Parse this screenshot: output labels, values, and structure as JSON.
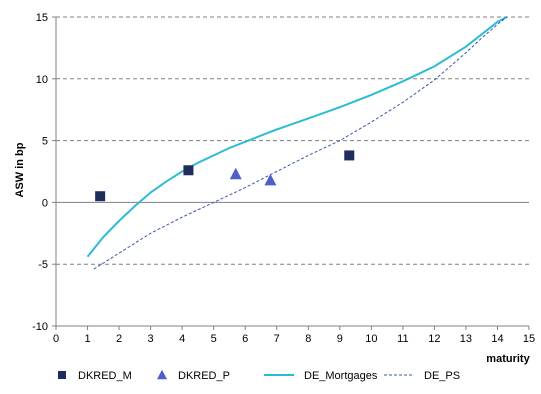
{
  "chart_data": {
    "type": "scatter",
    "title": "",
    "xlabel": "maturity",
    "ylabel": "ASW in bp",
    "xlim": [
      0,
      15
    ],
    "ylim": [
      -10,
      15
    ],
    "xticks": [
      0,
      1,
      2,
      3,
      4,
      5,
      6,
      7,
      8,
      9,
      10,
      11,
      12,
      13,
      14,
      15
    ],
    "yticks": [
      -10,
      -5,
      0,
      5,
      10,
      15
    ],
    "grid": "horizontal dashed",
    "legend_placement": "bottom",
    "series": [
      {
        "name": "DKRED_M",
        "kind": "marker",
        "marker": "square",
        "color": "#1f2d5c",
        "points": [
          [
            1.4,
            0.5
          ],
          [
            4.2,
            2.6
          ],
          [
            9.3,
            3.8
          ]
        ]
      },
      {
        "name": "DKRED_P",
        "kind": "marker",
        "marker": "triangle",
        "color": "#4f5fc9",
        "points": [
          [
            5.7,
            2.3
          ],
          [
            6.8,
            1.8
          ]
        ]
      },
      {
        "name": "DE_Mortgages",
        "kind": "line",
        "style": "solid",
        "color": "#2bbcd4",
        "points": [
          [
            1.0,
            -4.4
          ],
          [
            1.5,
            -2.8
          ],
          [
            2.0,
            -1.5
          ],
          [
            2.5,
            -0.3
          ],
          [
            3.0,
            0.8
          ],
          [
            3.5,
            1.7
          ],
          [
            4.0,
            2.5
          ],
          [
            4.5,
            3.2
          ],
          [
            5.0,
            3.8
          ],
          [
            5.5,
            4.4
          ],
          [
            6.0,
            4.9
          ],
          [
            7.0,
            5.9
          ],
          [
            8.0,
            6.8
          ],
          [
            9.0,
            7.7
          ],
          [
            10.0,
            8.7
          ],
          [
            11.0,
            9.8
          ],
          [
            12.0,
            11.0
          ],
          [
            13.0,
            12.6
          ],
          [
            13.5,
            13.6
          ],
          [
            14.0,
            14.6
          ],
          [
            14.3,
            15.0
          ]
        ]
      },
      {
        "name": "DE_PS",
        "kind": "line",
        "style": "dashed",
        "color": "#3a56b0",
        "points": [
          [
            1.2,
            -5.4
          ],
          [
            2.0,
            -4.1
          ],
          [
            3.0,
            -2.5
          ],
          [
            4.0,
            -1.2
          ],
          [
            5.0,
            0.0
          ],
          [
            6.0,
            1.2
          ],
          [
            7.0,
            2.5
          ],
          [
            8.0,
            3.8
          ],
          [
            9.0,
            5.0
          ],
          [
            10.0,
            6.5
          ],
          [
            11.0,
            8.1
          ],
          [
            12.0,
            9.9
          ],
          [
            13.0,
            12.1
          ],
          [
            13.5,
            13.3
          ],
          [
            14.0,
            14.4
          ],
          [
            14.3,
            15.0
          ]
        ]
      }
    ]
  }
}
